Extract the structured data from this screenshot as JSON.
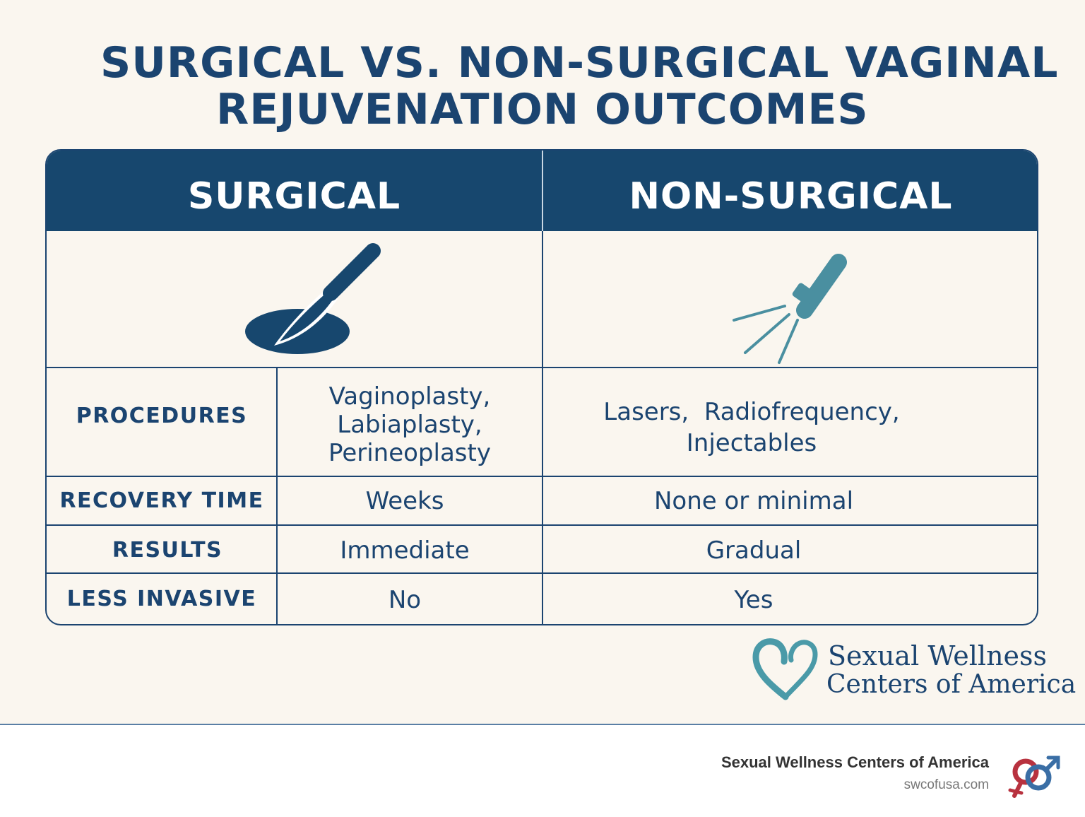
{
  "title": {
    "line1": "SURGICAL VS. NON-SURGICAL VAGINAL",
    "line2": "REJUVENATION OUTCOMES"
  },
  "columns": {
    "surgical": "SURGICAL",
    "non_surgical": "NON-SURGICAL"
  },
  "icons": {
    "surgical": "scalpel-icon",
    "non_surgical": "laser-wand-icon"
  },
  "rows": [
    {
      "label": "PROCEDURES",
      "surgical": "Vaginoplasty, Labiaplasty, Perineoplasty",
      "surgical_lines": [
        "Vaginoplasty,",
        "Labiaplasty,",
        "Perineoplasty"
      ],
      "non_surgical_lines": [
        "Lasers,  Radiofrequency,",
        "Injectables"
      ]
    },
    {
      "label": "RECOVERY TIME",
      "surgical": "Weeks",
      "non_surgical": "None or minimal"
    },
    {
      "label": "RESULTS",
      "surgical": "Immediate",
      "non_surgical": "Gradual"
    },
    {
      "label": "LESS INVASIVE",
      "surgical": "No",
      "non_surgical": "Yes"
    }
  ],
  "brand": {
    "logo_line1": "Sexual Wellness",
    "logo_line2": "Centers of America"
  },
  "footer": {
    "name": "Sexual Wellness Centers of America",
    "url": "swcofusa.com"
  },
  "colors": {
    "navy": "#17476e",
    "teal": "#4a8fa0",
    "background": "#faf6ef"
  }
}
